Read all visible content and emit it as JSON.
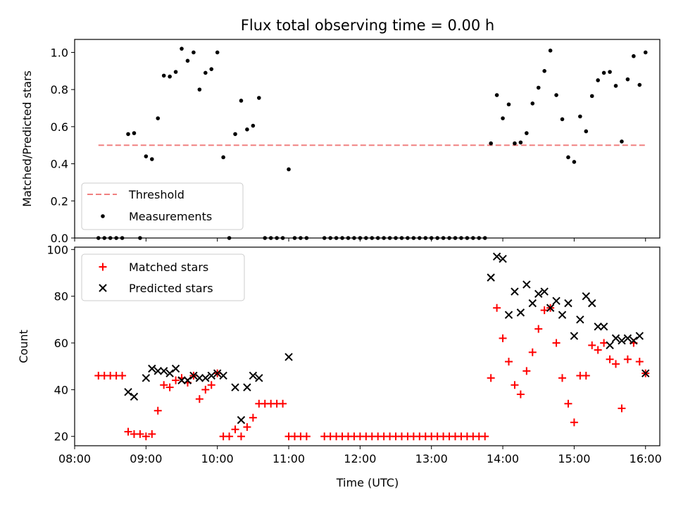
{
  "chart_data": [
    {
      "type": "scatter",
      "title": "Flux total observing time = 0.00 h",
      "ylabel": "Matched/Predicted stars",
      "xlabel": "",
      "ylim": [
        0,
        1.07
      ],
      "yticks": [
        "0.0",
        "0.2",
        "0.4",
        "0.6",
        "0.8",
        "1.0"
      ],
      "grid": false,
      "legend": "lower-left",
      "threshold": {
        "name": "Threshold",
        "value": 0.5,
        "x_start": "08:20",
        "x_end": "16:00",
        "color": "#f08080"
      },
      "series": [
        {
          "name": "Measurements",
          "color": "#000000",
          "points": [
            [
              "08:20",
              0.0
            ],
            [
              "08:25",
              0.0
            ],
            [
              "08:30",
              0.0
            ],
            [
              "08:35",
              0.0
            ],
            [
              "08:40",
              0.0
            ],
            [
              "08:45",
              0.56
            ],
            [
              "08:50",
              0.565
            ],
            [
              "08:55",
              0.0
            ],
            [
              "09:00",
              0.44
            ],
            [
              "09:05",
              0.425
            ],
            [
              "09:10",
              0.645
            ],
            [
              "09:15",
              0.875
            ],
            [
              "09:20",
              0.87
            ],
            [
              "09:25",
              0.895
            ],
            [
              "09:30",
              1.02
            ],
            [
              "09:35",
              0.955
            ],
            [
              "09:40",
              1.0
            ],
            [
              "09:45",
              0.8
            ],
            [
              "09:50",
              0.89
            ],
            [
              "09:55",
              0.91
            ],
            [
              "10:00",
              1.0
            ],
            [
              "10:05",
              0.435
            ],
            [
              "10:10",
              0.0
            ],
            [
              "10:15",
              0.56
            ],
            [
              "10:20",
              0.74
            ],
            [
              "10:25",
              0.585
            ],
            [
              "10:30",
              0.605
            ],
            [
              "10:35",
              0.755
            ],
            [
              "10:40",
              0.0
            ],
            [
              "10:45",
              0.0
            ],
            [
              "10:50",
              0.0
            ],
            [
              "10:55",
              0.0
            ],
            [
              "11:00",
              0.37
            ],
            [
              "11:05",
              0.0
            ],
            [
              "11:10",
              0.0
            ],
            [
              "11:15",
              0.0
            ],
            [
              "11:30",
              0.0
            ],
            [
              "11:35",
              0.0
            ],
            [
              "11:40",
              0.0
            ],
            [
              "11:45",
              0.0
            ],
            [
              "11:50",
              0.0
            ],
            [
              "11:55",
              0.0
            ],
            [
              "12:00",
              0.0
            ],
            [
              "12:05",
              0.0
            ],
            [
              "12:10",
              0.0
            ],
            [
              "12:15",
              0.0
            ],
            [
              "12:20",
              0.0
            ],
            [
              "12:25",
              0.0
            ],
            [
              "12:30",
              0.0
            ],
            [
              "12:35",
              0.0
            ],
            [
              "12:40",
              0.0
            ],
            [
              "12:45",
              0.0
            ],
            [
              "12:50",
              0.0
            ],
            [
              "12:55",
              0.0
            ],
            [
              "13:00",
              0.0
            ],
            [
              "13:05",
              0.0
            ],
            [
              "13:10",
              0.0
            ],
            [
              "13:15",
              0.0
            ],
            [
              "13:20",
              0.0
            ],
            [
              "13:25",
              0.0
            ],
            [
              "13:30",
              0.0
            ],
            [
              "13:35",
              0.0
            ],
            [
              "13:40",
              0.0
            ],
            [
              "13:45",
              0.0
            ],
            [
              "13:50",
              0.51
            ],
            [
              "13:55",
              0.77
            ],
            [
              "14:00",
              0.645
            ],
            [
              "14:05",
              0.72
            ],
            [
              "14:10",
              0.51
            ],
            [
              "14:15",
              0.515
            ],
            [
              "14:20",
              0.565
            ],
            [
              "14:25",
              0.725
            ],
            [
              "14:30",
              0.81
            ],
            [
              "14:35",
              0.9
            ],
            [
              "14:40",
              1.01
            ],
            [
              "14:45",
              0.77
            ],
            [
              "14:50",
              0.64
            ],
            [
              "14:55",
              0.435
            ],
            [
              "15:00",
              0.41
            ],
            [
              "15:05",
              0.655
            ],
            [
              "15:10",
              0.575
            ],
            [
              "15:15",
              0.765
            ],
            [
              "15:20",
              0.85
            ],
            [
              "15:25",
              0.89
            ],
            [
              "15:30",
              0.895
            ],
            [
              "15:35",
              0.82
            ],
            [
              "15:40",
              0.52
            ],
            [
              "15:45",
              0.855
            ],
            [
              "15:50",
              0.98
            ],
            [
              "15:55",
              0.825
            ],
            [
              "16:00",
              1.0
            ]
          ]
        }
      ]
    },
    {
      "type": "scatter",
      "title": "",
      "xlabel": "Time (UTC)",
      "ylabel": "Count",
      "ylim": [
        16,
        101
      ],
      "yticks": [
        "20",
        "40",
        "60",
        "80",
        "100"
      ],
      "xlim": [
        "08:00",
        "16:12"
      ],
      "xticks": [
        "08:00",
        "09:00",
        "10:00",
        "11:00",
        "12:00",
        "13:00",
        "14:00",
        "15:00",
        "16:00"
      ],
      "grid": false,
      "legend": "top-left",
      "series": [
        {
          "name": "Matched stars",
          "marker": "+",
          "color": "#ff0000",
          "points": [
            [
              "08:20",
              46
            ],
            [
              "08:25",
              46
            ],
            [
              "08:30",
              46
            ],
            [
              "08:35",
              46
            ],
            [
              "08:40",
              46
            ],
            [
              "08:45",
              22
            ],
            [
              "08:50",
              21
            ],
            [
              "08:55",
              21
            ],
            [
              "09:00",
              20
            ],
            [
              "09:05",
              21
            ],
            [
              "09:10",
              31
            ],
            [
              "09:15",
              42
            ],
            [
              "09:20",
              41
            ],
            [
              "09:25",
              44
            ],
            [
              "09:30",
              45
            ],
            [
              "09:35",
              43
            ],
            [
              "09:40",
              46
            ],
            [
              "09:45",
              36
            ],
            [
              "09:50",
              40
            ],
            [
              "09:55",
              42
            ],
            [
              "10:00",
              47
            ],
            [
              "10:05",
              20
            ],
            [
              "10:10",
              20
            ],
            [
              "10:15",
              23
            ],
            [
              "10:20",
              20
            ],
            [
              "10:25",
              24
            ],
            [
              "10:30",
              28
            ],
            [
              "10:35",
              34
            ],
            [
              "10:40",
              34
            ],
            [
              "10:45",
              34
            ],
            [
              "10:50",
              34
            ],
            [
              "10:55",
              34
            ],
            [
              "11:00",
              20
            ],
            [
              "11:05",
              20
            ],
            [
              "11:10",
              20
            ],
            [
              "11:15",
              20
            ],
            [
              "11:30",
              20
            ],
            [
              "11:35",
              20
            ],
            [
              "11:40",
              20
            ],
            [
              "11:45",
              20
            ],
            [
              "11:50",
              20
            ],
            [
              "11:55",
              20
            ],
            [
              "12:00",
              20
            ],
            [
              "12:05",
              20
            ],
            [
              "12:10",
              20
            ],
            [
              "12:15",
              20
            ],
            [
              "12:20",
              20
            ],
            [
              "12:25",
              20
            ],
            [
              "12:30",
              20
            ],
            [
              "12:35",
              20
            ],
            [
              "12:40",
              20
            ],
            [
              "12:45",
              20
            ],
            [
              "12:50",
              20
            ],
            [
              "12:55",
              20
            ],
            [
              "13:00",
              20
            ],
            [
              "13:05",
              20
            ],
            [
              "13:10",
              20
            ],
            [
              "13:15",
              20
            ],
            [
              "13:20",
              20
            ],
            [
              "13:25",
              20
            ],
            [
              "13:30",
              20
            ],
            [
              "13:35",
              20
            ],
            [
              "13:40",
              20
            ],
            [
              "13:45",
              20
            ],
            [
              "13:50",
              45
            ],
            [
              "13:55",
              75
            ],
            [
              "14:00",
              62
            ],
            [
              "14:05",
              52
            ],
            [
              "14:10",
              42
            ],
            [
              "14:15",
              38
            ],
            [
              "14:20",
              48
            ],
            [
              "14:25",
              56
            ],
            [
              "14:30",
              66
            ],
            [
              "14:35",
              74
            ],
            [
              "14:40",
              75
            ],
            [
              "14:45",
              60
            ],
            [
              "14:50",
              45
            ],
            [
              "14:55",
              34
            ],
            [
              "15:00",
              26
            ],
            [
              "15:05",
              46
            ],
            [
              "15:10",
              46
            ],
            [
              "15:15",
              59
            ],
            [
              "15:20",
              57
            ],
            [
              "15:25",
              60
            ],
            [
              "15:30",
              53
            ],
            [
              "15:35",
              51
            ],
            [
              "15:40",
              32
            ],
            [
              "15:45",
              53
            ],
            [
              "15:50",
              60
            ],
            [
              "15:55",
              52
            ],
            [
              "16:00",
              47
            ]
          ]
        },
        {
          "name": "Predicted stars",
          "marker": "x",
          "color": "#000000",
          "points": [
            [
              "08:45",
              39
            ],
            [
              "08:50",
              37
            ],
            [
              "09:00",
              45
            ],
            [
              "09:05",
              49
            ],
            [
              "09:10",
              48
            ],
            [
              "09:15",
              48
            ],
            [
              "09:20",
              47
            ],
            [
              "09:25",
              49
            ],
            [
              "09:30",
              44
            ],
            [
              "09:35",
              44
            ],
            [
              "09:40",
              46
            ],
            [
              "09:45",
              45
            ],
            [
              "09:50",
              45
            ],
            [
              "09:55",
              46
            ],
            [
              "10:00",
              47
            ],
            [
              "10:05",
              46
            ],
            [
              "10:15",
              41
            ],
            [
              "10:20",
              27
            ],
            [
              "10:25",
              41
            ],
            [
              "10:30",
              46
            ],
            [
              "10:35",
              45
            ],
            [
              "11:00",
              54
            ],
            [
              "13:50",
              88
            ],
            [
              "13:55",
              97
            ],
            [
              "14:00",
              96
            ],
            [
              "14:05",
              72
            ],
            [
              "14:10",
              82
            ],
            [
              "14:15",
              73
            ],
            [
              "14:20",
              85
            ],
            [
              "14:25",
              77
            ],
            [
              "14:30",
              81
            ],
            [
              "14:35",
              82
            ],
            [
              "14:40",
              75
            ],
            [
              "14:45",
              78
            ],
            [
              "14:50",
              72
            ],
            [
              "14:55",
              77
            ],
            [
              "15:00",
              63
            ],
            [
              "15:05",
              70
            ],
            [
              "15:10",
              80
            ],
            [
              "15:15",
              77
            ],
            [
              "15:20",
              67
            ],
            [
              "15:25",
              67
            ],
            [
              "15:30",
              59
            ],
            [
              "15:35",
              62
            ],
            [
              "15:40",
              61
            ],
            [
              "15:45",
              62
            ],
            [
              "15:50",
              61
            ],
            [
              "15:55",
              63
            ],
            [
              "16:00",
              47
            ]
          ]
        }
      ]
    }
  ]
}
